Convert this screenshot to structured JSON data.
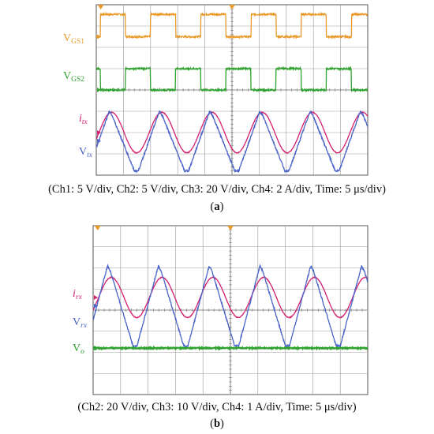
{
  "chart_data": [
    {
      "type": "line",
      "subfigure_label": "a",
      "caption": "(Ch1: 5 V/div, Ch2: 5 V/div, Ch3: 20 V/div, Ch4: 2 A/div, Time: 5 μs/div)",
      "x_divisions": 10,
      "y_divisions": 8,
      "grid": true,
      "series": [
        {
          "name": "VGS1",
          "label_main": "V",
          "label_sub": "GS1",
          "color": "#e89a2c",
          "waveform": "square",
          "period_div": 1.85,
          "phase_div": 0.15,
          "high_div": 7.55,
          "low_div": 6.5
        },
        {
          "name": "VGS2",
          "label_main": "V",
          "label_sub": "GS2",
          "color": "#2ea12e",
          "waveform": "square",
          "period_div": 1.85,
          "phase_div": 1.07,
          "high_div": 5.0,
          "low_div": 4.0
        },
        {
          "name": "itx",
          "label_main": "i",
          "label_sub": "tx",
          "color": "#d42070",
          "waveform": "sine",
          "period_div": 1.85,
          "phase_div": 0.1,
          "offset_div": 2.0,
          "amplitude_div": 0.95
        },
        {
          "name": "Vtx",
          "label_main": "V",
          "label_sub": "tx",
          "color": "#4a63c8",
          "waveform": "triangle-ish",
          "period_div": 1.85,
          "phase_div": -0.3,
          "offset_div": 1.6,
          "amplitude_div": 1.4
        }
      ]
    },
    {
      "type": "line",
      "subfigure_label": "b",
      "caption": "(Ch2: 20 V/div, Ch3: 10 V/div, Ch4: 1 A/div, Time: 5 μs/div)",
      "x_divisions": 10,
      "y_divisions": 8,
      "grid": true,
      "series": [
        {
          "name": "irx",
          "label_main": "i",
          "label_sub": "rx",
          "color": "#d42070",
          "waveform": "sine",
          "period_div": 1.85,
          "phase_div": 0.2,
          "offset_div": 4.6,
          "amplitude_div": 0.95
        },
        {
          "name": "Vrx",
          "label_main": "V",
          "label_sub": "rx",
          "color": "#4a63c8",
          "waveform": "triangle-ish",
          "period_div": 1.85,
          "phase_div": -0.25,
          "offset_div": 4.2,
          "amplitude_div": 1.9
        },
        {
          "name": "Vo",
          "label_main": "V",
          "label_sub": "o",
          "color": "#2ea12e",
          "waveform": "dc",
          "offset_div": 2.2
        }
      ]
    }
  ],
  "colors": {
    "grid": "#9a9a9a",
    "frame": "#555555",
    "background": "#ffffff"
  }
}
